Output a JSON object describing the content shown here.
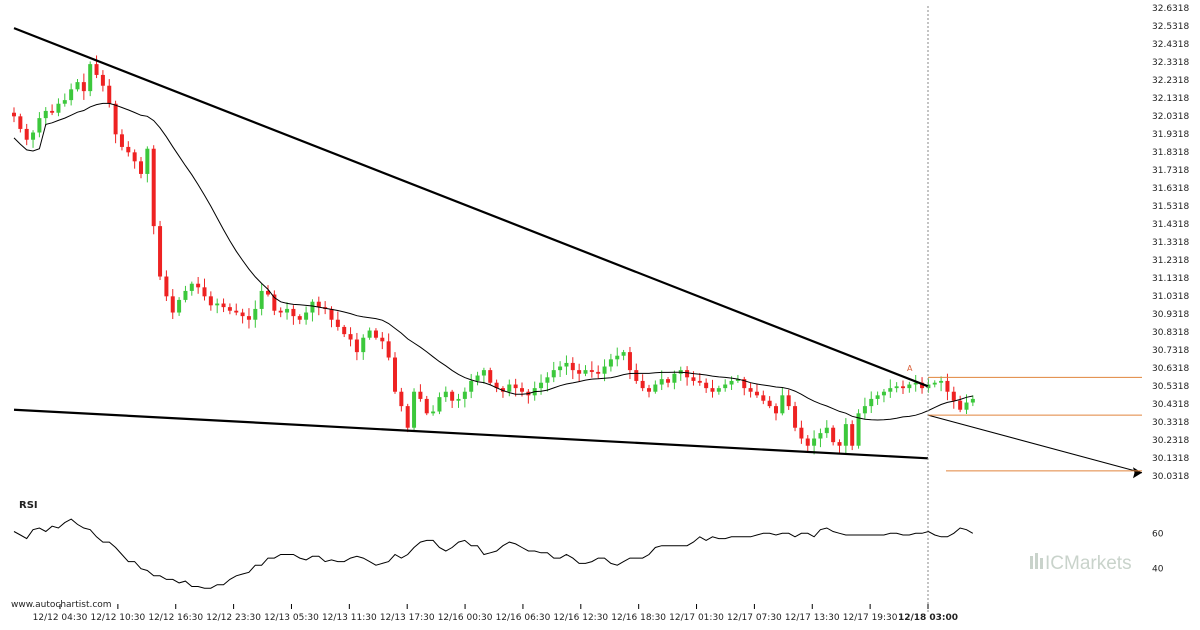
{
  "watermark": "www.autochartist.com",
  "brand": "ICMarkets",
  "rsi_label": "RSI",
  "pattern_marker": "A",
  "colors": {
    "bull": "#3cc83c",
    "bear": "#ee2222",
    "trendline": "#000000",
    "target_line": "#e0843c",
    "vline": "#888888",
    "ma": "#000000"
  },
  "chart_data": [
    {
      "type": "candlestick",
      "title": "",
      "y_ticks": [
        "32.6318",
        "32.5318",
        "32.4318",
        "32.3318",
        "32.2318",
        "32.1318",
        "32.0318",
        "31.9318",
        "31.8318",
        "31.7318",
        "31.6318",
        "31.5318",
        "31.4318",
        "31.3318",
        "31.2318",
        "31.1318",
        "31.0318",
        "30.9318",
        "30.8318",
        "30.7318",
        "30.6318",
        "30.5318",
        "30.4318",
        "30.3318",
        "30.2318",
        "30.1318",
        "30.0318"
      ],
      "ylim": [
        30.0318,
        32.6318
      ],
      "x_ticks": [
        {
          "label": "12/12 04:30",
          "bold": false
        },
        {
          "label": "12/12 10:30",
          "bold": false
        },
        {
          "label": "12/12 16:30",
          "bold": false
        },
        {
          "label": "12/12 23:30",
          "bold": false
        },
        {
          "label": "12/13 05:30",
          "bold": false
        },
        {
          "label": "12/13 11:30",
          "bold": false
        },
        {
          "label": "12/13 17:30",
          "bold": false
        },
        {
          "label": "12/16 00:30",
          "bold": false
        },
        {
          "label": "12/16 06:30",
          "bold": false
        },
        {
          "label": "12/16 12:30",
          "bold": false
        },
        {
          "label": "12/16 18:30",
          "bold": false
        },
        {
          "label": "12/17 01:30",
          "bold": false
        },
        {
          "label": "12/17 07:30",
          "bold": false
        },
        {
          "label": "12/17 13:30",
          "bold": false
        },
        {
          "label": "12/17 19:30",
          "bold": false
        },
        {
          "label": "12/18 03:00",
          "bold": true
        }
      ],
      "closes": [
        32.03,
        31.96,
        31.9,
        31.94,
        32.02,
        32.06,
        32.05,
        32.1,
        32.12,
        32.18,
        32.22,
        32.17,
        32.32,
        32.26,
        32.2,
        32.1,
        31.93,
        31.86,
        31.83,
        31.78,
        31.71,
        31.85,
        31.42,
        31.14,
        31.03,
        30.94,
        31.01,
        31.06,
        31.1,
        31.08,
        31.03,
        30.98,
        30.99,
        30.97,
        30.95,
        30.94,
        30.92,
        30.9,
        30.96,
        31.06,
        31.04,
        30.95,
        30.94,
        30.96,
        30.92,
        30.9,
        30.94,
        31.0,
        30.97,
        30.96,
        30.9,
        30.86,
        30.82,
        30.79,
        30.72,
        30.8,
        30.84,
        30.8,
        30.78,
        30.69,
        30.5,
        30.42,
        30.3,
        30.5,
        30.46,
        30.38,
        30.39,
        30.47,
        30.5,
        30.45,
        30.46,
        30.5,
        30.56,
        30.59,
        30.62,
        30.55,
        30.52,
        30.5,
        30.54,
        30.52,
        30.5,
        30.48,
        30.52,
        30.55,
        30.58,
        30.62,
        30.64,
        30.66,
        30.62,
        30.6,
        30.62,
        30.61,
        30.6,
        30.64,
        30.68,
        30.7,
        30.72,
        30.62,
        30.56,
        30.52,
        30.5,
        30.54,
        30.57,
        30.55,
        30.6,
        30.62,
        30.58,
        30.56,
        30.55,
        30.52,
        30.5,
        30.52,
        30.54,
        30.56,
        30.57,
        30.52,
        30.5,
        30.48,
        30.45,
        30.42,
        30.38,
        30.48,
        30.42,
        30.3,
        30.24,
        30.2,
        30.24,
        30.27,
        30.3,
        30.22,
        30.2,
        30.32,
        30.2,
        30.38,
        30.42,
        30.46,
        30.48,
        30.5,
        30.52,
        30.53,
        30.52,
        30.54,
        30.55,
        30.52,
        30.54,
        30.55,
        30.56,
        30.5,
        30.45,
        30.4,
        30.44,
        30.46
      ],
      "ma_label": "moving average",
      "trendlines": [
        {
          "name": "resistance",
          "start": [
            "12/12 01:30",
            32.52
          ],
          "end": [
            "12/18 03:00",
            30.53
          ]
        },
        {
          "name": "support",
          "start": [
            "12/12 01:30",
            30.4
          ],
          "end": [
            "12/18 03:00",
            30.13
          ]
        },
        {
          "name": "forecast",
          "start": [
            "12/18 03:00",
            30.37
          ],
          "end": [
            "12/18 22:00",
            30.05
          ]
        }
      ],
      "target_levels": [
        30.58,
        30.37,
        30.06
      ]
    },
    {
      "type": "line",
      "title": "RSI",
      "y_ticks": [
        "60",
        "40"
      ],
      "ylim": [
        28,
        72
      ],
      "values": [
        61,
        59,
        57,
        62,
        63,
        61,
        64,
        63,
        66,
        68,
        65,
        63,
        62,
        58,
        55,
        55,
        52,
        48,
        44,
        44,
        40,
        39,
        36,
        36,
        34,
        34,
        32,
        33,
        30,
        30,
        29,
        29,
        31,
        31,
        34,
        36,
        37,
        38,
        42,
        42,
        46,
        46,
        48,
        48,
        48,
        46,
        45,
        47,
        47,
        44,
        45,
        44,
        44,
        46,
        47,
        46,
        44,
        42,
        43,
        44,
        48,
        46,
        48,
        52,
        55,
        56,
        56,
        52,
        50,
        52,
        55,
        56,
        53,
        53,
        48,
        49,
        50,
        53,
        55,
        54,
        52,
        50,
        50,
        49,
        49,
        46,
        46,
        48,
        46,
        43,
        43,
        44,
        46,
        46,
        43,
        42,
        44,
        46,
        46,
        46,
        48,
        52,
        53,
        53,
        53,
        53,
        53,
        55,
        58,
        56,
        58,
        57,
        57,
        58,
        58,
        58,
        58,
        59,
        60,
        60,
        59,
        60,
        60,
        58,
        60,
        60,
        58,
        62,
        63,
        61,
        60,
        59,
        59,
        59,
        59,
        59,
        59,
        59,
        60,
        60,
        59,
        59,
        60,
        60,
        61,
        59,
        58,
        58,
        60,
        63,
        62,
        60
      ]
    }
  ]
}
